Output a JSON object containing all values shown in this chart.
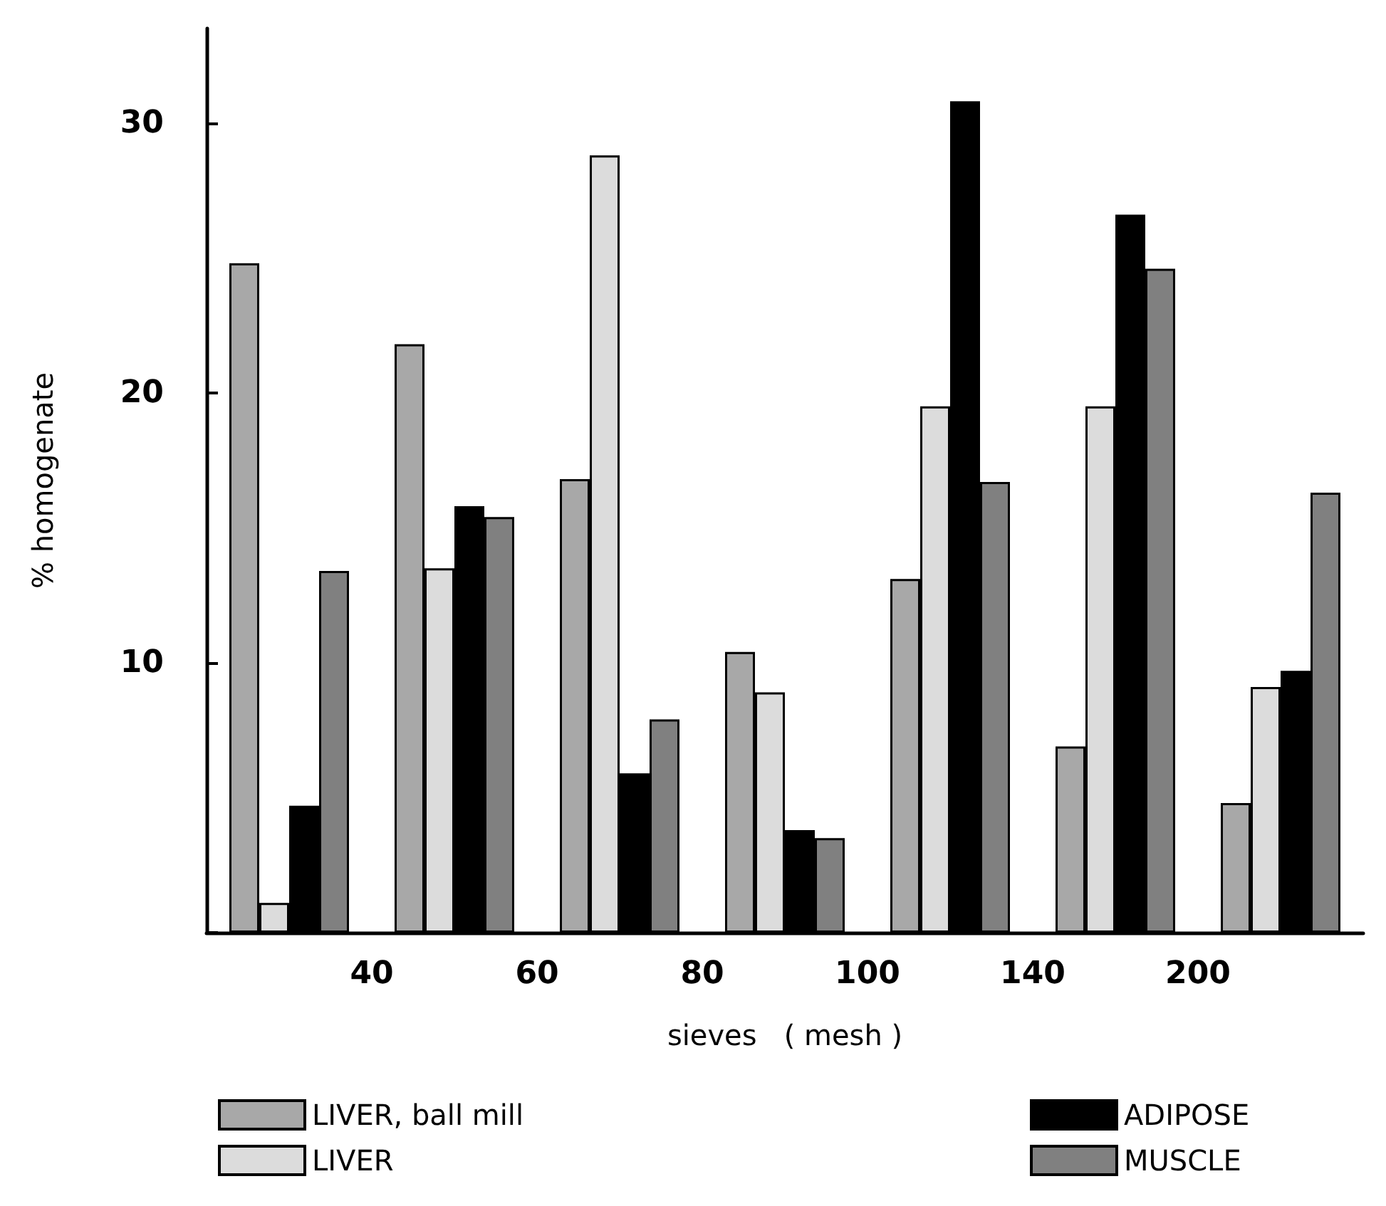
{
  "chart_data": {
    "type": "bar",
    "xlabel": "sieves   ( mesh )",
    "ylabel": "% homogenate",
    "categories": [
      null,
      null,
      null,
      null,
      null,
      null,
      null
    ],
    "annotations": [
      "40",
      "60",
      "80",
      "100",
      "140",
      "200"
    ],
    "ylim": [
      0,
      33.5
    ],
    "yticks": [
      {
        "value": 0,
        "label": null
      },
      10,
      20,
      30
    ],
    "series": [
      {
        "name": "LIVER, ball mill",
        "color": "#a8a8a8",
        "values": [
          24.8,
          21.8,
          16.8,
          10.4,
          13.1,
          6.9,
          4.8
        ]
      },
      {
        "name": "LIVER",
        "color": "#dcdcdc",
        "values": [
          1.1,
          13.5,
          28.8,
          8.9,
          19.5,
          19.5,
          9.1
        ]
      },
      {
        "name": "ADIPOSE",
        "color": "#000000",
        "values": [
          4.7,
          15.8,
          5.9,
          3.8,
          30.8,
          26.6,
          9.7
        ]
      },
      {
        "name": "MUSCLE",
        "color": "#808080",
        "values": [
          13.4,
          15.4,
          7.9,
          3.5,
          16.7,
          24.6,
          16.3
        ]
      }
    ],
    "legend": "bottom",
    "grid": false
  }
}
